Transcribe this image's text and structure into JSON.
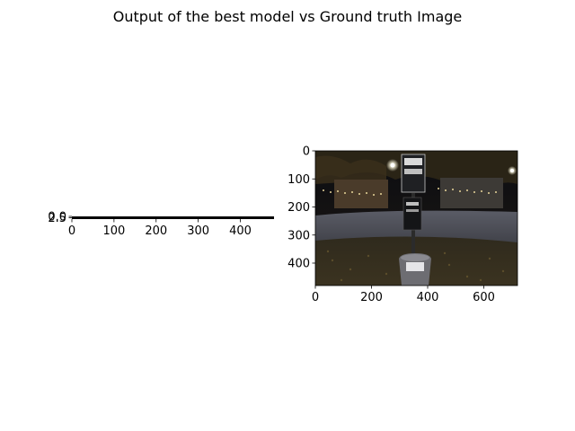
{
  "figure": {
    "title": "Output of the best model vs Ground truth Image"
  },
  "chart_data": [
    {
      "type": "heatmap",
      "name": "best-model-output",
      "title": "",
      "xlabel": "",
      "ylabel": "",
      "xlim": [
        0,
        480
      ],
      "ylim": [
        5,
        0
      ],
      "x_ticks": [
        0,
        100,
        200,
        300,
        400
      ],
      "y_ticks": [
        0.0,
        2.5
      ],
      "y_tick_labels": [
        "0.0",
        "2.5"
      ],
      "note_content": "degenerate output image, appears as a thin black strip"
    },
    {
      "type": "heatmap",
      "name": "ground-truth-image",
      "title": "",
      "xlabel": "",
      "ylabel": "",
      "xlim": [
        0,
        720
      ],
      "ylim": [
        480,
        0
      ],
      "x_ticks": [
        0,
        200,
        400,
        600
      ],
      "y_ticks": [
        0,
        100,
        200,
        300,
        400
      ],
      "image_content": "night scene of a park with a signpost and trash bin, string lights and building in background"
    }
  ]
}
